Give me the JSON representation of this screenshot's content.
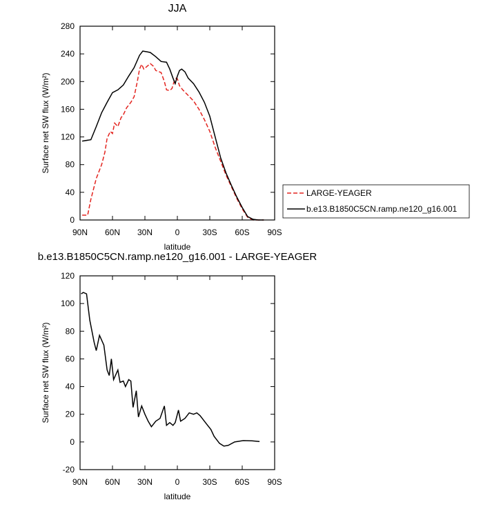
{
  "chart_data": [
    {
      "type": "line",
      "title": "JJA",
      "x_label": "latitude",
      "y_label": "Surface net SW flux (W/m²)",
      "xlim": [
        90,
        -90
      ],
      "xticks": [
        {
          "value": 90,
          "label": "90N"
        },
        {
          "value": 60,
          "label": "60N"
        },
        {
          "value": 30,
          "label": "30N"
        },
        0,
        {
          "value": -30,
          "label": "30S"
        },
        {
          "value": -60,
          "label": "60S"
        },
        {
          "value": -90,
          "label": "90S"
        }
      ],
      "ylim": [
        0,
        280
      ],
      "yticks": [
        0,
        40,
        80,
        120,
        160,
        200,
        240,
        280
      ],
      "legend": "right",
      "series": [
        {
          "name": "LARGE-YEAGER",
          "color": "#e3231e",
          "line_style": "dashed",
          "x": [
            88,
            83,
            80,
            75,
            70,
            67,
            65,
            62,
            60,
            58,
            55,
            52,
            50,
            47,
            43,
            40,
            37,
            35,
            33,
            31,
            28,
            25,
            22,
            20,
            15,
            12,
            10,
            7,
            5,
            3,
            1,
            0,
            -2,
            -5,
            -10,
            -15,
            -20,
            -25,
            -30,
            -35,
            -40,
            -45,
            -50,
            -55,
            -60,
            -65,
            -70,
            -75,
            -80
          ],
          "values": [
            7,
            7,
            30,
            60,
            80,
            98,
            118,
            128,
            125,
            140,
            135,
            148,
            152,
            162,
            170,
            178,
            200,
            218,
            225,
            218,
            222,
            226,
            222,
            216,
            213,
            200,
            188,
            187,
            190,
            200,
            205,
            204,
            194,
            188,
            180,
            172,
            160,
            145,
            128,
            105,
            85,
            65,
            48,
            31,
            16,
            4,
            0,
            0,
            0
          ]
        },
        {
          "name": "b.e13.B1850C5CN.ramp.ne120_g16.001",
          "color": "#000000",
          "line_style": "solid",
          "x": [
            88,
            80,
            75,
            70,
            65,
            60,
            55,
            50,
            45,
            40,
            35,
            32,
            28,
            25,
            20,
            15,
            10,
            7,
            4,
            2,
            0,
            -2,
            -4,
            -7,
            -10,
            -15,
            -20,
            -25,
            -30,
            -35,
            -40,
            -45,
            -50,
            -55,
            -60,
            -65,
            -70,
            -75,
            -80
          ],
          "values": [
            114,
            116,
            135,
            155,
            170,
            184,
            188,
            195,
            208,
            220,
            238,
            244,
            243,
            242,
            236,
            229,
            228,
            218,
            205,
            197,
            208,
            216,
            218,
            214,
            205,
            197,
            185,
            170,
            150,
            120,
            90,
            68,
            50,
            33,
            18,
            5,
            1,
            0,
            0
          ]
        }
      ]
    },
    {
      "type": "line",
      "title": "b.e13.B1850C5CN.ramp.ne120_g16.001 - LARGE-YEAGER",
      "x_label": "latitude",
      "y_label": "Surface net SW flux (W/m²)",
      "xlim": [
        90,
        -90
      ],
      "xticks": [
        {
          "value": 90,
          "label": "90N"
        },
        {
          "value": 60,
          "label": "60N"
        },
        {
          "value": 30,
          "label": "30N"
        },
        0,
        {
          "value": -30,
          "label": "30S"
        },
        {
          "value": -60,
          "label": "60S"
        },
        {
          "value": -90,
          "label": "90S"
        }
      ],
      "ylim": [
        -20,
        120
      ],
      "yticks": [
        -20,
        0,
        20,
        40,
        60,
        80,
        100,
        120
      ],
      "series": [
        {
          "color": "#000000",
          "line_style": "solid",
          "x": [
            89,
            87,
            84,
            81,
            77,
            75,
            72,
            68,
            65,
            63,
            61,
            59,
            55,
            53,
            50,
            48,
            45,
            43,
            41,
            38,
            36,
            33,
            30,
            27,
            24,
            20,
            16,
            12,
            10,
            7,
            4,
            2,
            -1,
            -3,
            -7,
            -11,
            -15,
            -18,
            -21,
            -25,
            -27,
            -31,
            -34,
            -39,
            -43,
            -47,
            -53,
            -61,
            -69,
            -76
          ],
          "values": [
            107,
            108,
            107,
            88,
            72,
            66,
            77,
            70,
            52,
            48,
            60,
            45,
            52,
            43,
            44,
            40,
            45,
            44,
            25,
            37,
            18,
            26,
            20,
            15,
            11,
            15,
            17,
            26,
            12,
            14,
            12,
            14,
            23,
            15,
            17,
            21,
            20,
            21,
            19,
            15,
            13,
            9,
            4,
            -1,
            -3,
            -2.5,
            0,
            1,
            0.8,
            0.3
          ]
        }
      ]
    }
  ]
}
